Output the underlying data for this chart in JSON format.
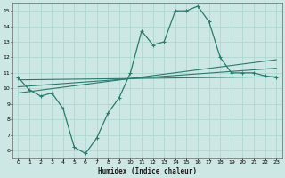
{
  "title": "",
  "xlabel": "Humidex (Indice chaleur)",
  "ylabel": "",
  "bg_color": "#cde8e4",
  "grid_color": "#b0d8d2",
  "line_color": "#2a7a6e",
  "xlim": [
    -0.5,
    23.5
  ],
  "ylim": [
    5.5,
    15.5
  ],
  "xticks": [
    0,
    1,
    2,
    3,
    4,
    5,
    6,
    7,
    8,
    9,
    10,
    11,
    12,
    13,
    14,
    15,
    16,
    17,
    18,
    19,
    20,
    21,
    22,
    23
  ],
  "yticks": [
    6,
    7,
    8,
    9,
    10,
    11,
    12,
    13,
    14,
    15
  ],
  "main_x": [
    0,
    1,
    2,
    3,
    4,
    5,
    6,
    7,
    8,
    9,
    10,
    11,
    12,
    13,
    14,
    15,
    16,
    17,
    18,
    19,
    20,
    21,
    22,
    23
  ],
  "main_y": [
    10.7,
    9.9,
    9.5,
    9.7,
    8.7,
    6.2,
    5.8,
    6.8,
    8.4,
    9.4,
    11.0,
    13.7,
    12.8,
    13.0,
    15.0,
    15.0,
    15.3,
    14.3,
    12.0,
    11.0,
    11.0,
    11.0,
    10.8,
    10.7
  ],
  "trend1_x": [
    0,
    23
  ],
  "trend1_y": [
    10.55,
    10.75
  ],
  "trend2_x": [
    0,
    23
  ],
  "trend2_y": [
    10.1,
    11.3
  ],
  "trend3_x": [
    0,
    23
  ],
  "trend3_y": [
    9.7,
    11.85
  ]
}
